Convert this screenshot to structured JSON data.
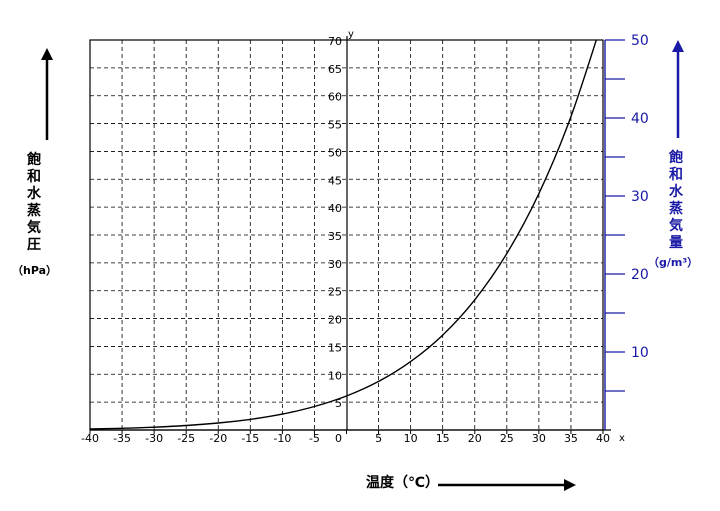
{
  "chart_data": {
    "type": "line",
    "title": "",
    "xlabel": "温度（℃）",
    "x_axis_name": "x",
    "y_axis_name": "y",
    "ylabel": "飽和水蒸気圧",
    "ylabel_unit": "（hPa）",
    "y2label": "飽和水蒸気量",
    "y2label_unit": "（g/m³）",
    "xlim": [
      -40,
      40
    ],
    "ylim": [
      0,
      70
    ],
    "y2lim": [
      0,
      50
    ],
    "x_ticks": [
      -40,
      -35,
      -30,
      -25,
      -20,
      -15,
      -10,
      -5,
      0,
      5,
      10,
      15,
      20,
      25,
      30,
      35,
      40
    ],
    "x_tick_labels": [
      "-40",
      "-35",
      "-30",
      "-25",
      "-20",
      "-15",
      "-10",
      "-5",
      "0",
      "5",
      "10",
      "15",
      "20",
      "25",
      "30",
      "35",
      "40"
    ],
    "y_ticks": [
      5,
      10,
      15,
      20,
      25,
      30,
      35,
      40,
      45,
      50,
      55,
      60,
      65,
      70
    ],
    "y_tick_labels": [
      "5",
      "10",
      "15",
      "20",
      "25",
      "30",
      "35",
      "40",
      "45",
      "50",
      "55",
      "60",
      "65",
      "70"
    ],
    "y2_ticks": [
      5,
      10,
      15,
      20,
      25,
      30,
      35,
      40,
      45,
      50
    ],
    "y2_labeled": [
      {
        "value": 10,
        "label": "10"
      },
      {
        "value": 20,
        "label": "20"
      },
      {
        "value": 30,
        "label": "30"
      },
      {
        "value": 40,
        "label": "40"
      },
      {
        "value": 50,
        "label": "50"
      }
    ],
    "grid": "dashed",
    "series": [
      {
        "x": [
          -40,
          -35,
          -30,
          -25,
          -20,
          -15,
          -10,
          -5,
          0,
          5,
          10,
          15,
          20,
          25,
          30,
          35,
          40
        ],
        "y": [
          0.19,
          0.31,
          0.51,
          0.81,
          1.26,
          1.91,
          2.86,
          4.21,
          6.11,
          8.72,
          12.27,
          17.04,
          23.37,
          31.67,
          42.43,
          56.24,
          73.78
        ]
      }
    ],
    "colors": {
      "left_axis": "#000000",
      "right_axis": "#1a1aa6",
      "grid": "#000000",
      "curve": "#000000"
    }
  }
}
